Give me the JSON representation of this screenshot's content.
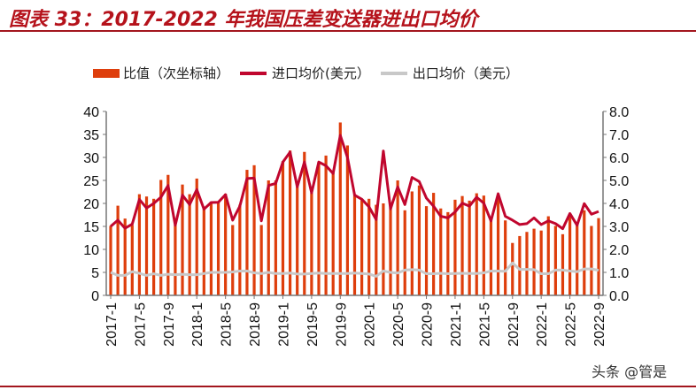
{
  "title": "图表 33：2017-2022 年我国压差变送器进出口均价",
  "watermark": "头条 @管是",
  "chart_data": {
    "type": "bar+line",
    "title": "图表 33：2017-2022 年我国压差变送器进出口均价",
    "legend_position": "top",
    "grid": false,
    "left_axis": {
      "ylim": [
        0,
        40
      ],
      "ticks": [
        "0",
        "5",
        "10",
        "15",
        "20",
        "25",
        "30",
        "35",
        "40"
      ]
    },
    "right_axis": {
      "ylim": [
        0,
        8
      ],
      "ticks": [
        "0.0",
        "1.0",
        "2.0",
        "3.0",
        "4.0",
        "5.0",
        "6.0",
        "7.0",
        "8.0"
      ]
    },
    "x_tick_labels": [
      "2017-1",
      "2017-5",
      "2017-9",
      "2018-1",
      "2018-5",
      "2018-9",
      "2019-1",
      "2019-5",
      "2019-9",
      "2020-1",
      "2020-5",
      "2020-9",
      "2021-1",
      "2021-5",
      "2021-9",
      "2022-1",
      "2022-5",
      "2022-9"
    ],
    "start_month": "2017-1",
    "end_month": "2022-9",
    "series": [
      {
        "name": "比值（次坐标轴）",
        "kind": "bar",
        "axis": "left",
        "color": "#de3e0c",
        "values": [
          15.1,
          19.5,
          16.7,
          15.3,
          22.0,
          21.5,
          21.0,
          25.1,
          26.2,
          15.3,
          24.1,
          22.0,
          25.4,
          18.8,
          20.4,
          20.4,
          22.1,
          15.3,
          19.7,
          27.3,
          28.3,
          15.3,
          25.0,
          25.0,
          29.2,
          31.5,
          23.6,
          31.2,
          22.3,
          29.0,
          30.4,
          26.8,
          37.6,
          32.6,
          22.0,
          20.7,
          21.0,
          19.7,
          20.0,
          19.1,
          25.0,
          18.5,
          22.6,
          23.9,
          19.4,
          22.3,
          18.9,
          18.1,
          20.8,
          21.6,
          20.6,
          22.2,
          21.7,
          16.5,
          21.3,
          16.3,
          11.4,
          12.9,
          13.8,
          14.5,
          14.1,
          17.2,
          15.1,
          13.3,
          17.5,
          15.3,
          18.5,
          15.1,
          16.8
        ]
      },
      {
        "name": "进口均价(美元）",
        "kind": "line",
        "axis": "right",
        "color": "#c0062e",
        "values": [
          3.0,
          3.27,
          2.92,
          3.1,
          4.17,
          3.8,
          4.0,
          4.27,
          4.78,
          3.05,
          4.36,
          3.95,
          4.6,
          3.75,
          4.04,
          4.05,
          4.38,
          3.27,
          3.88,
          5.08,
          5.1,
          3.24,
          4.78,
          4.87,
          5.8,
          6.23,
          4.72,
          5.8,
          4.46,
          5.8,
          5.64,
          5.3,
          6.96,
          6.0,
          4.36,
          4.18,
          3.85,
          3.3,
          6.28,
          3.76,
          4.72,
          3.95,
          5.13,
          4.95,
          4.23,
          3.88,
          3.44,
          3.37,
          3.63,
          4.01,
          3.88,
          4.27,
          4.01,
          3.24,
          4.42,
          3.44,
          3.27,
          3.08,
          3.12,
          3.37,
          3.08,
          3.24,
          3.12,
          2.9,
          3.56,
          3.05,
          3.99,
          3.53,
          3.65
        ]
      },
      {
        "name": "出口均价（美元）",
        "kind": "line",
        "axis": "right",
        "color": "#c8c8c8",
        "values": [
          1.0,
          0.87,
          0.87,
          1.03,
          0.96,
          0.87,
          0.94,
          0.87,
          0.92,
          0.9,
          0.92,
          0.9,
          0.9,
          0.95,
          1.0,
          1.0,
          1.0,
          1.02,
          1.06,
          1.06,
          0.98,
          0.95,
          1.0,
          0.95,
          0.95,
          0.97,
          0.93,
          0.93,
          0.95,
          0.97,
          0.95,
          0.95,
          0.95,
          0.95,
          0.97,
          0.95,
          0.93,
          0.83,
          1.06,
          1.0,
          0.97,
          1.1,
          1.12,
          1.1,
          0.94,
          0.94,
          0.96,
          0.94,
          0.95,
          0.96,
          0.95,
          0.95,
          0.98,
          1.06,
          1.06,
          1.05,
          1.41,
          1.13,
          1.13,
          1.12,
          0.94,
          0.94,
          1.1,
          1.1,
          1.06,
          1.03,
          1.15,
          1.15,
          1.09
        ]
      }
    ]
  }
}
